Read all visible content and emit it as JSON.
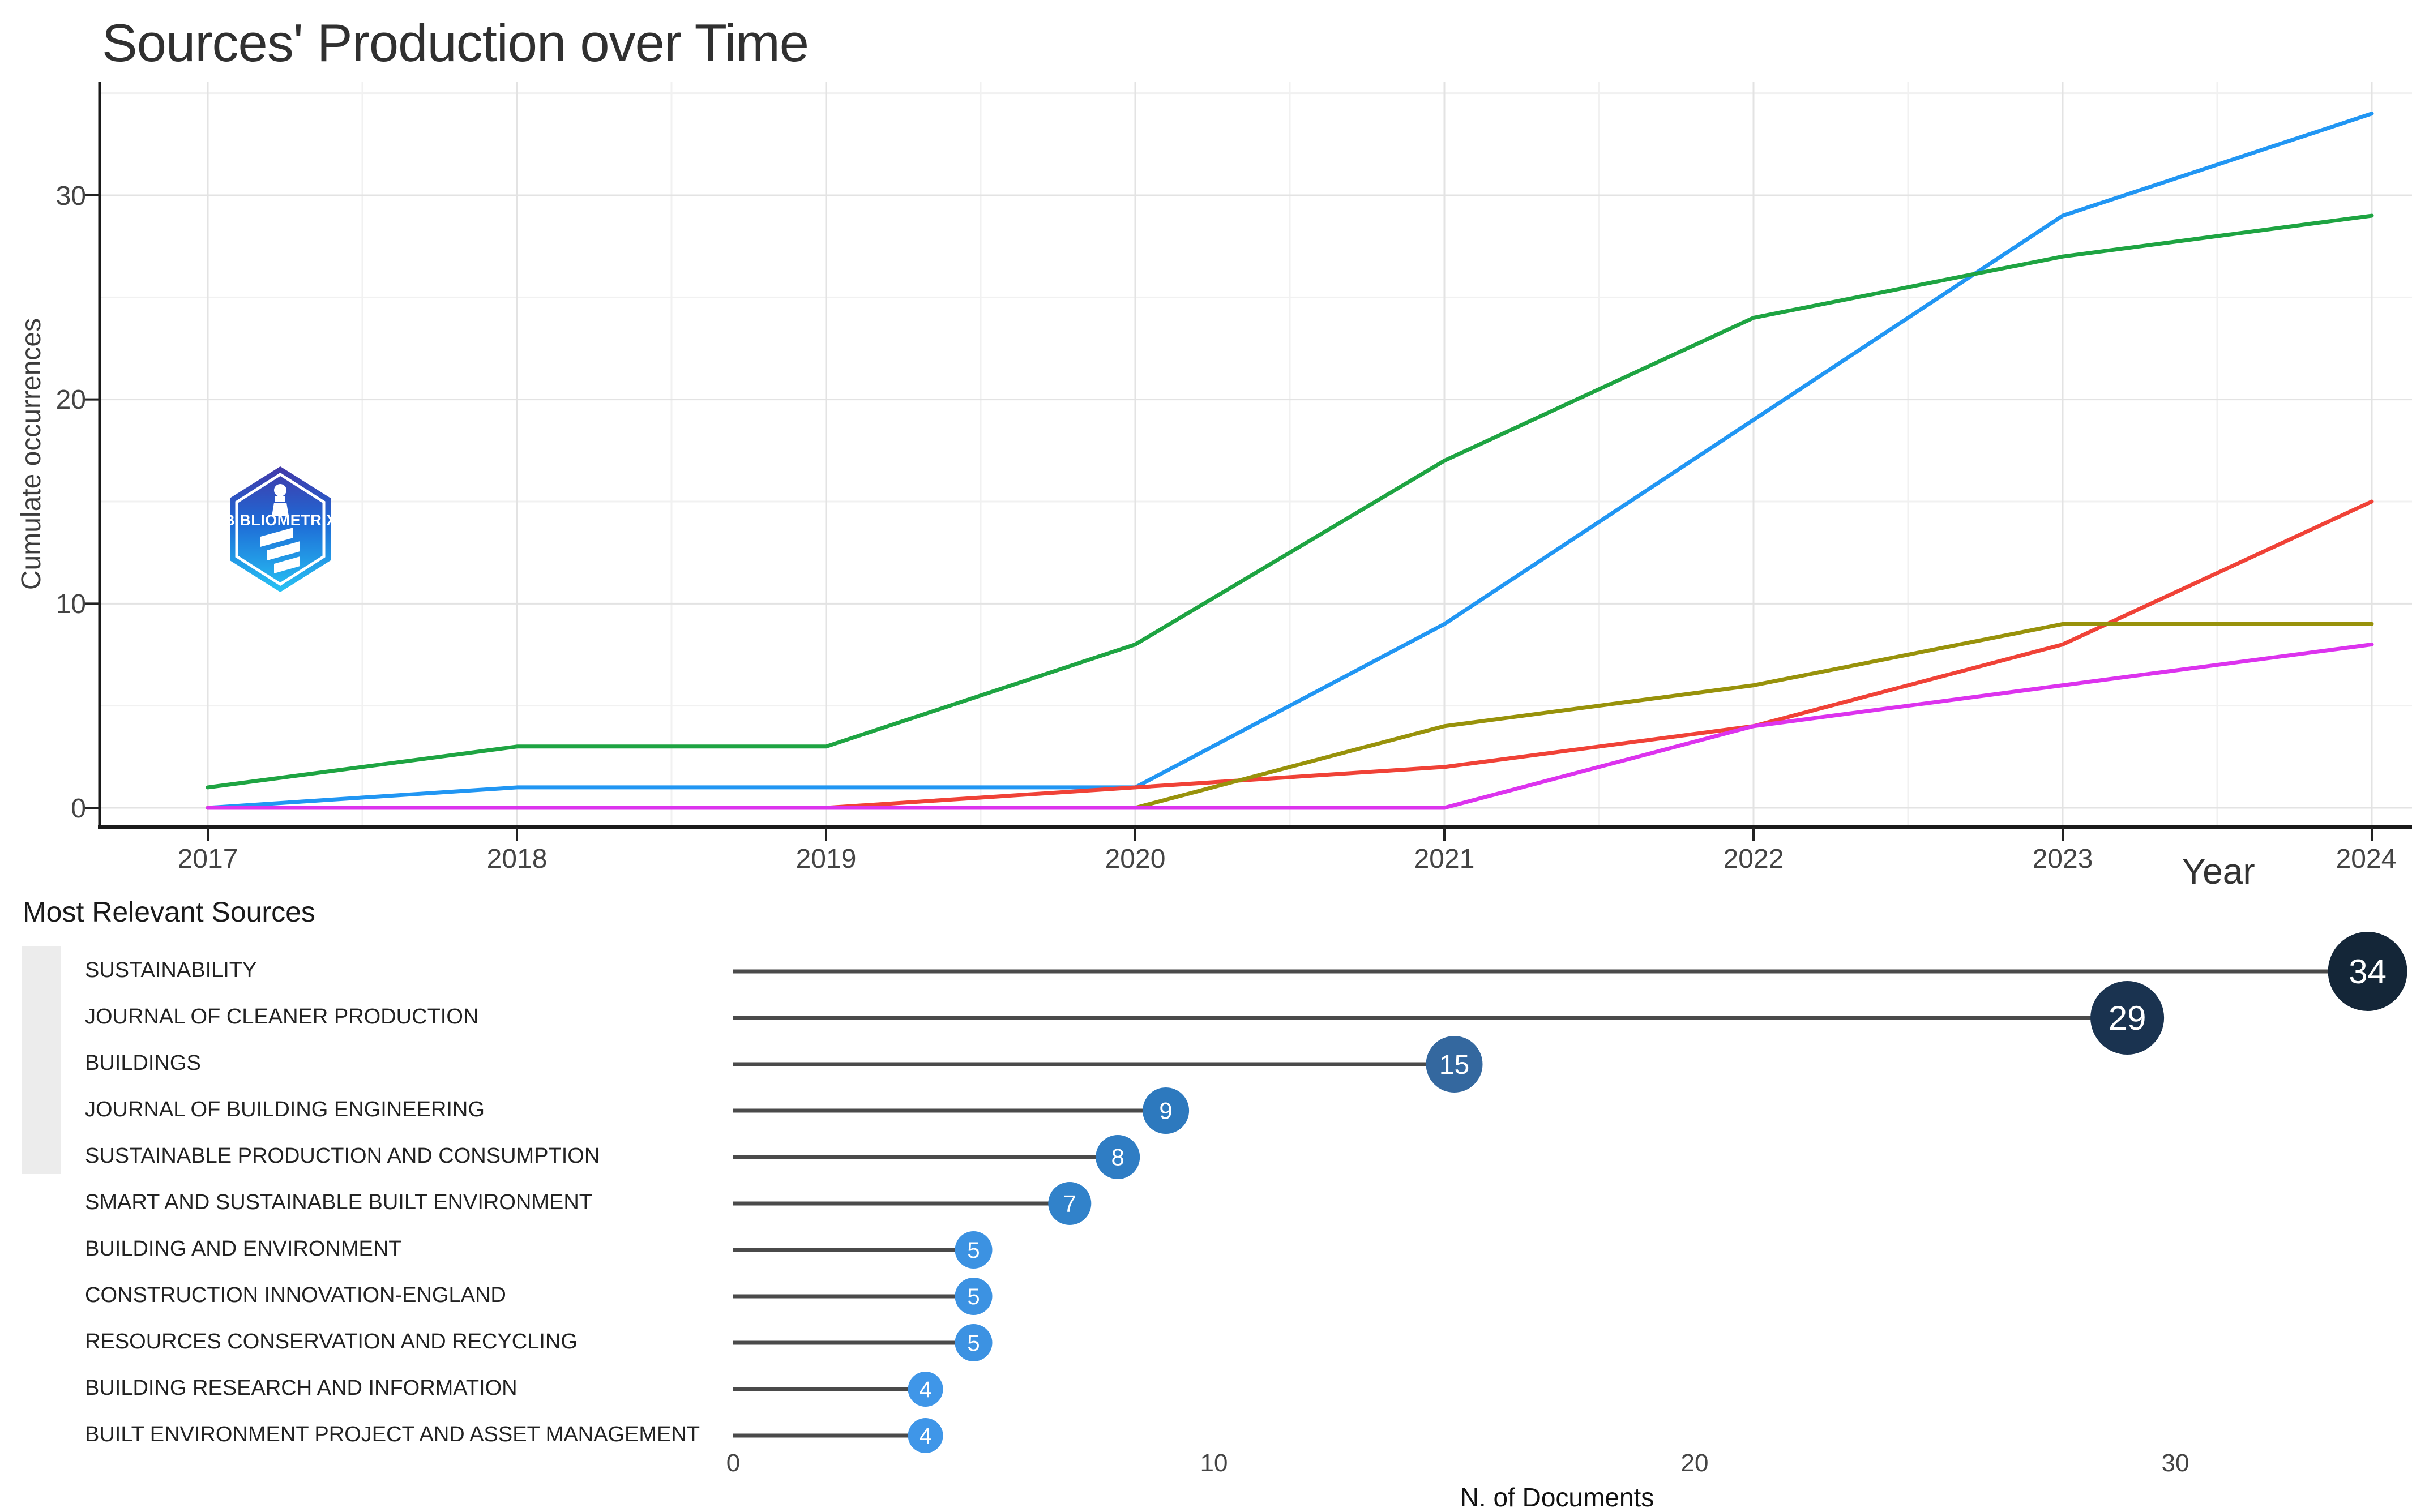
{
  "page_title": "Sources' Production over Time",
  "logo": {
    "text": "BIBLIOMETRIX"
  },
  "chart_data": [
    {
      "type": "line",
      "title": "Sources' Production over Time",
      "xlabel": "Year",
      "ylabel": "Cumulate occurrences",
      "x": [
        2017,
        2018,
        2019,
        2020,
        2021,
        2022,
        2023,
        2024
      ],
      "x_tick_labels": [
        "2017",
        "2018",
        "2019",
        "2020",
        "2021",
        "2022",
        "2023",
        "2024"
      ],
      "y_ticks": [
        0,
        10,
        20,
        30
      ],
      "y_tick_labels": [
        "0",
        "10",
        "20",
        "30"
      ],
      "ylim": [
        0,
        35.5
      ],
      "grid": "major and minor, light gray on white",
      "legend_position": "bottom-left keys beside lollipop labels",
      "series": [
        {
          "name": "SUSTAINABILITY",
          "color": "#2196F3",
          "values": [
            0,
            1,
            1,
            1,
            9,
            19,
            29,
            34
          ]
        },
        {
          "name": "JOURNAL OF CLEANER PRODUCTION",
          "color": "#1EA442",
          "values": [
            1,
            3,
            3,
            8,
            17,
            24,
            27,
            29
          ]
        },
        {
          "name": "BUILDINGS",
          "color": "#F04237",
          "values": [
            0,
            0,
            0,
            1,
            2,
            4,
            8,
            15
          ]
        },
        {
          "name": "JOURNAL OF BUILDING ENGINEERING",
          "color": "#98920B",
          "values": [
            0,
            0,
            0,
            0,
            4,
            6,
            9,
            9
          ]
        },
        {
          "name": "SUSTAINABLE PRODUCTION AND CONSUMPTION",
          "color": "#DC33EE",
          "values": [
            0,
            0,
            0,
            0,
            0,
            4,
            6,
            8
          ]
        }
      ]
    },
    {
      "type": "lollipop",
      "title": "Most Relevant Sources",
      "xlabel": "N. of Documents",
      "x_ticks": [
        0,
        10,
        20,
        30
      ],
      "x_tick_labels": [
        "0",
        "10",
        "20",
        "30"
      ],
      "stick_color": "#4A4A4A",
      "sources": [
        {
          "name": "SUSTAINABILITY",
          "value": 34,
          "dot_color": "#142638"
        },
        {
          "name": "JOURNAL OF CLEANER PRODUCTION",
          "value": 29,
          "dot_color": "#1A3350"
        },
        {
          "name": "BUILDINGS",
          "value": 15,
          "dot_color": "#34689F"
        },
        {
          "name": "JOURNAL OF BUILDING ENGINEERING",
          "value": 9,
          "dot_color": "#2D79BE"
        },
        {
          "name": "SUSTAINABLE PRODUCTION AND CONSUMPTION",
          "value": 8,
          "dot_color": "#2F7DC4"
        },
        {
          "name": "SMART AND SUSTAINABLE BUILT ENVIRONMENT",
          "value": 7,
          "dot_color": "#3182CA"
        },
        {
          "name": "BUILDING AND ENVIRONMENT",
          "value": 5,
          "dot_color": "#3C92E2"
        },
        {
          "name": "CONSTRUCTION INNOVATION-ENGLAND",
          "value": 5,
          "dot_color": "#3C92E2"
        },
        {
          "name": "RESOURCES CONSERVATION AND RECYCLING",
          "value": 5,
          "dot_color": "#3C92E2"
        },
        {
          "name": "BUILDING RESEARCH AND INFORMATION",
          "value": 4,
          "dot_color": "#3F96E8"
        },
        {
          "name": "BUILT ENVIRONMENT PROJECT AND ASSET MANAGEMENT",
          "value": 4,
          "dot_color": "#3F96E8"
        }
      ]
    }
  ]
}
